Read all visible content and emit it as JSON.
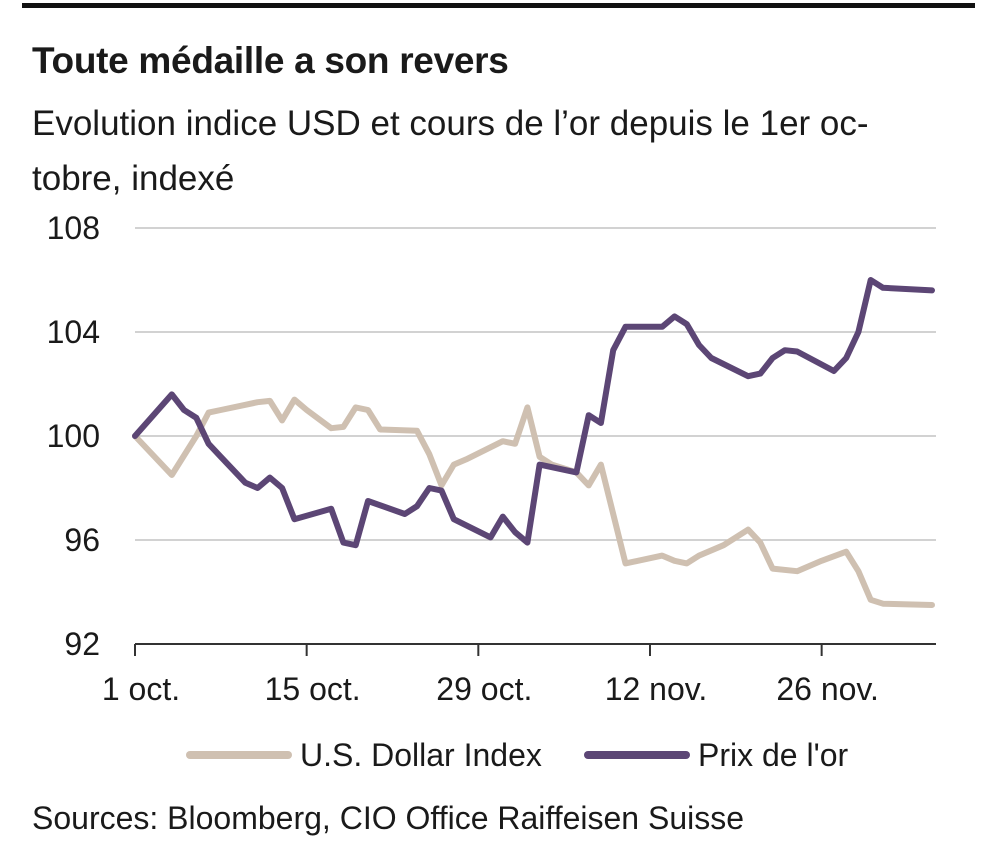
{
  "header": {
    "title": "Toute médaille a son revers",
    "subtitle_line1": "Evolution indice USD et cours de l’or depuis le 1er oc-",
    "subtitle_line2": "tobre, indexé"
  },
  "footer": {
    "source": "Sources: Bloomberg, CIO Office Raiffeisen Suisse"
  },
  "chart_data": {
    "type": "line",
    "title": "Toute médaille a son revers",
    "subtitle": "Evolution indice USD et cours de l’or depuis le 1er octobre, indexé",
    "ylim": [
      92,
      108
    ],
    "yticks": [
      "108",
      "104",
      "100",
      "96",
      "92"
    ],
    "ytick_values": [
      108,
      104,
      100,
      96,
      92
    ],
    "xticks": [
      {
        "label": "1 oct.",
        "day": 1
      },
      {
        "label": "15 oct.",
        "day": 15
      },
      {
        "label": "29 oct.",
        "day": 29
      },
      {
        "label": "12 nov.",
        "day": 43
      },
      {
        "label": "26 nov.",
        "day": 57
      }
    ],
    "xlim_days": [
      1,
      66
    ],
    "grid": true,
    "legend_position": "bottom",
    "series": [
      {
        "name": "U.S. Dollar Index",
        "color": "#cfc0b1",
        "points": [
          [
            1,
            100.0
          ],
          [
            4,
            98.5
          ],
          [
            6,
            100.0
          ],
          [
            7,
            100.9
          ],
          [
            8,
            101.0
          ],
          [
            10,
            101.2
          ],
          [
            11,
            101.3
          ],
          [
            12,
            101.35
          ],
          [
            13,
            100.6
          ],
          [
            14,
            101.4
          ],
          [
            15,
            101.0
          ],
          [
            17,
            100.3
          ],
          [
            18,
            100.35
          ],
          [
            19,
            101.1
          ],
          [
            20,
            101.0
          ],
          [
            21,
            100.25
          ],
          [
            24,
            100.2
          ],
          [
            25,
            99.3
          ],
          [
            26,
            98.1
          ],
          [
            27,
            98.9
          ],
          [
            28,
            99.1
          ],
          [
            31,
            99.8
          ],
          [
            32,
            99.7
          ],
          [
            33,
            101.1
          ],
          [
            34,
            99.2
          ],
          [
            35,
            98.9
          ],
          [
            37,
            98.6
          ],
          [
            38,
            98.1
          ],
          [
            39,
            98.9
          ],
          [
            40,
            97.0
          ],
          [
            41,
            95.1
          ],
          [
            44,
            95.4
          ],
          [
            45,
            95.2
          ],
          [
            46,
            95.1
          ],
          [
            47,
            95.4
          ],
          [
            49,
            95.8
          ],
          [
            51,
            96.4
          ],
          [
            52,
            95.9
          ],
          [
            53,
            94.9
          ],
          [
            55,
            94.8
          ],
          [
            57,
            95.2
          ],
          [
            59,
            95.55
          ],
          [
            60,
            94.8
          ],
          [
            61,
            93.7
          ],
          [
            62,
            93.55
          ],
          [
            66,
            93.5
          ]
        ]
      },
      {
        "name": "Prix de l'or",
        "color": "#5c4675",
        "points": [
          [
            1,
            100.0
          ],
          [
            4,
            101.6
          ],
          [
            5,
            101.0
          ],
          [
            6,
            100.7
          ],
          [
            7,
            99.7
          ],
          [
            8,
            99.2
          ],
          [
            10,
            98.2
          ],
          [
            11,
            98.0
          ],
          [
            12,
            98.4
          ],
          [
            13,
            98.0
          ],
          [
            14,
            96.8
          ],
          [
            17,
            97.2
          ],
          [
            18,
            95.9
          ],
          [
            19,
            95.8
          ],
          [
            20,
            97.5
          ],
          [
            23,
            97.0
          ],
          [
            24,
            97.3
          ],
          [
            25,
            98.0
          ],
          [
            26,
            97.9
          ],
          [
            27,
            96.8
          ],
          [
            30,
            96.1
          ],
          [
            31,
            96.9
          ],
          [
            32,
            96.3
          ],
          [
            33,
            95.9
          ],
          [
            34,
            98.9
          ],
          [
            37,
            98.6
          ],
          [
            38,
            100.8
          ],
          [
            39,
            100.5
          ],
          [
            40,
            103.3
          ],
          [
            41,
            104.2
          ],
          [
            44,
            104.2
          ],
          [
            45,
            104.6
          ],
          [
            46,
            104.3
          ],
          [
            47,
            103.5
          ],
          [
            48,
            103.0
          ],
          [
            51,
            102.3
          ],
          [
            52,
            102.4
          ],
          [
            53,
            103.0
          ],
          [
            54,
            103.3
          ],
          [
            55,
            103.25
          ],
          [
            58,
            102.5
          ],
          [
            59,
            103.0
          ],
          [
            60,
            104.0
          ],
          [
            61,
            106.0
          ],
          [
            62,
            105.7
          ],
          [
            66,
            105.6
          ]
        ]
      }
    ]
  }
}
